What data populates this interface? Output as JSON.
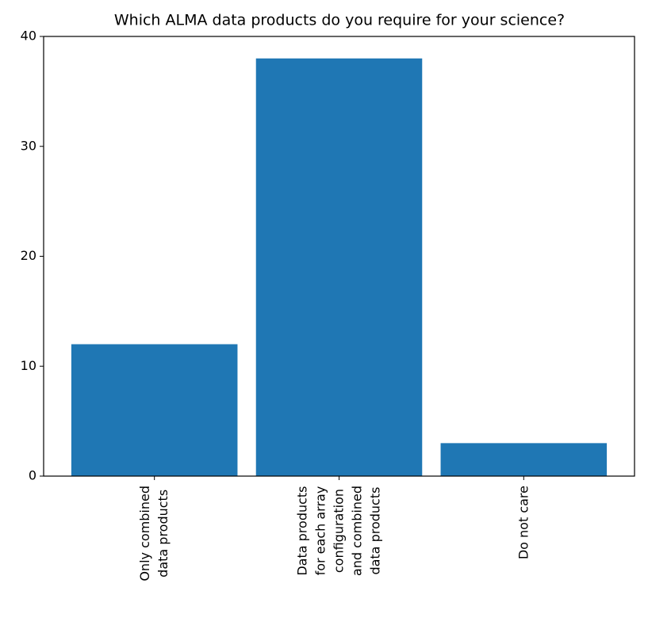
{
  "chart_data": {
    "type": "bar",
    "title": "Which ALMA data products do you require for your science?",
    "categories": [
      "Only combined\ndata products",
      "Data products\nfor each array\nconfiguration\nand combined\ndata products",
      "Do not care"
    ],
    "values": [
      12,
      38,
      3
    ],
    "color": "#1f77b4",
    "ylim": [
      0,
      40
    ],
    "yticks": [
      0,
      10,
      20,
      30,
      40
    ],
    "grid": false
  }
}
